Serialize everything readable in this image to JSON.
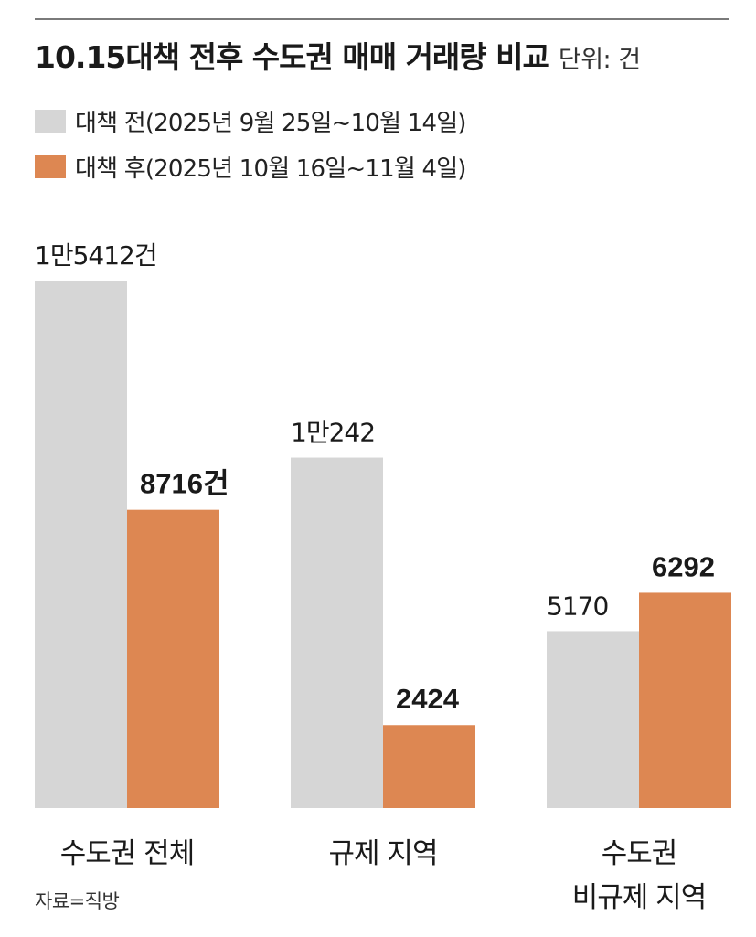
{
  "header": {
    "title": "10.15대책 전후 수도권 매매 거래량 비교",
    "unit": "단위: 건"
  },
  "colors": {
    "before": "#d6d6d6",
    "after": "#dd8752"
  },
  "source": "자료=직방",
  "chart_data": {
    "type": "bar",
    "title": "10.15대책 전후 수도권 매매 거래량 비교",
    "unit": "건",
    "categories": [
      {
        "lines": [
          "수도권 전체"
        ]
      },
      {
        "lines": [
          "규제 지역"
        ]
      },
      {
        "lines": [
          "수도권",
          "비규제 지역"
        ]
      }
    ],
    "series": [
      {
        "name": "대책 전(2025년 9월 25일~10월 14일)",
        "values": [
          15412,
          10242,
          5170
        ],
        "labels": [
          "1만5412건",
          "1만242",
          "5170"
        ]
      },
      {
        "name": "대책 후(2025년 10월 16일~11월 4일)",
        "values": [
          8716,
          2424,
          6292
        ],
        "labels": [
          "8716건",
          "2424",
          "6292"
        ]
      }
    ],
    "ylim": [
      0,
      15412
    ],
    "legend": "top-left",
    "grid": false
  }
}
